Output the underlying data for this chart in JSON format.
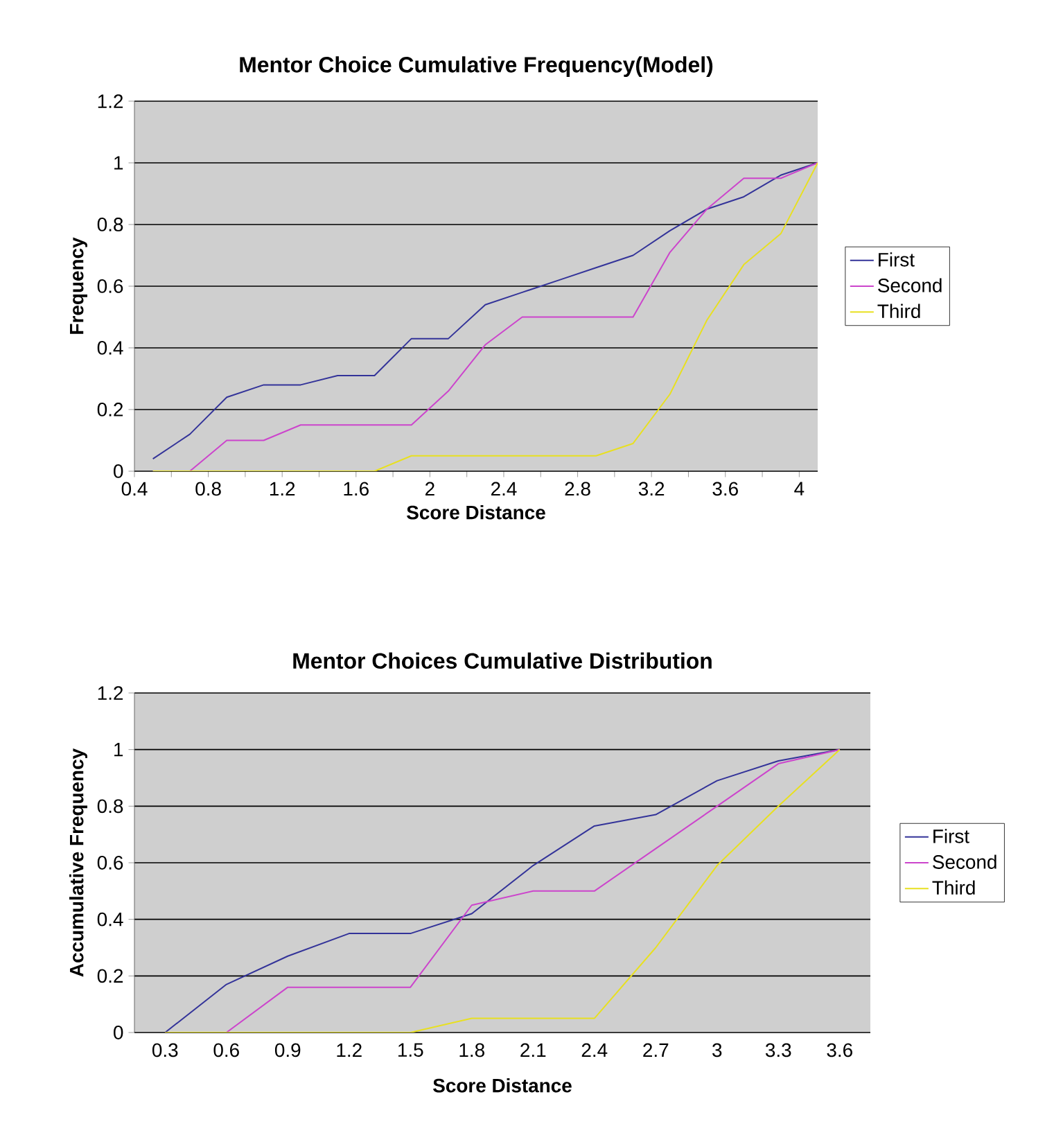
{
  "chart_data": [
    {
      "type": "line",
      "title": "Mentor Choice Cumulative Frequency(Model)",
      "xlabel": "Score Distance",
      "ylabel": "Frequency",
      "x": [
        0.5,
        0.7,
        0.9,
        1.1,
        1.3,
        1.5,
        1.7,
        1.9,
        2.1,
        2.3,
        2.5,
        2.7,
        2.9,
        3.1,
        3.3,
        3.5,
        3.7,
        3.9,
        4.1
      ],
      "series": [
        {
          "name": "First",
          "color": "#333399",
          "values": [
            0.04,
            0.12,
            0.24,
            0.28,
            0.28,
            0.31,
            0.31,
            0.43,
            0.43,
            0.54,
            0.58,
            0.62,
            0.66,
            0.7,
            0.78,
            0.85,
            0.89,
            0.96,
            1.0
          ]
        },
        {
          "name": "Second",
          "color": "#cc44cc",
          "values": [
            0,
            0,
            0.1,
            0.1,
            0.15,
            0.15,
            0.15,
            0.15,
            0.26,
            0.41,
            0.5,
            0.5,
            0.5,
            0.5,
            0.71,
            0.85,
            0.95,
            0.95,
            1.0
          ]
        },
        {
          "name": "Third",
          "color": "#e8e020",
          "values": [
            0,
            0,
            0,
            0,
            0,
            0,
            0,
            0.05,
            0.05,
            0.05,
            0.05,
            0.05,
            0.05,
            0.09,
            0.25,
            0.49,
            0.67,
            0.77,
            1.0
          ]
        }
      ],
      "xlim": [
        0.4,
        4.1
      ],
      "xticks": [
        0.4,
        {
          "value": 0.6,
          "label": null
        },
        0.8,
        {
          "value": 1.0,
          "label": null
        },
        1.2,
        {
          "value": 1.4,
          "label": null
        },
        1.6,
        {
          "value": 1.8,
          "label": null
        },
        2,
        {
          "value": 2.2,
          "label": null
        },
        2.4,
        {
          "value": 2.6,
          "label": null
        },
        2.8,
        {
          "value": 3.0,
          "label": null
        },
        3.2,
        {
          "value": 3.4,
          "label": null
        },
        3.6,
        {
          "value": 3.8,
          "label": null
        },
        4
      ],
      "ylim": [
        0,
        1.2
      ],
      "yticks": [
        0,
        0.2,
        0.4,
        0.6,
        0.8,
        1,
        1.2
      ],
      "grid": "y",
      "legend": "right"
    },
    {
      "type": "line",
      "title": "Mentor Choices Cumulative Distribution",
      "xlabel": "Score Distance",
      "ylabel": "Accumulative Frequency",
      "categories": [
        "0.3",
        "0.6",
        "0.9",
        "1.2",
        "1.5",
        "1.8",
        "2.1",
        "2.4",
        "2.7",
        "3",
        "3.3",
        "3.6"
      ],
      "series": [
        {
          "name": "First",
          "color": "#333399",
          "values": [
            0,
            0.17,
            0.27,
            0.35,
            0.35,
            0.42,
            0.59,
            0.73,
            0.77,
            0.89,
            0.96,
            1.0
          ]
        },
        {
          "name": "Second",
          "color": "#cc44cc",
          "values": [
            0,
            0,
            0.16,
            0.16,
            0.16,
            0.45,
            0.5,
            0.5,
            0.65,
            0.8,
            0.95,
            1.0
          ]
        },
        {
          "name": "Third",
          "color": "#e8e020",
          "values": [
            0,
            0,
            0,
            0,
            0,
            0.05,
            0.05,
            0.05,
            0.3,
            0.59,
            0.8,
            1.0
          ]
        }
      ],
      "ylim": [
        0,
        1.2
      ],
      "yticks": [
        0,
        0.2,
        0.4,
        0.6,
        0.8,
        1,
        1.2
      ],
      "grid": "y",
      "legend": "right"
    }
  ]
}
